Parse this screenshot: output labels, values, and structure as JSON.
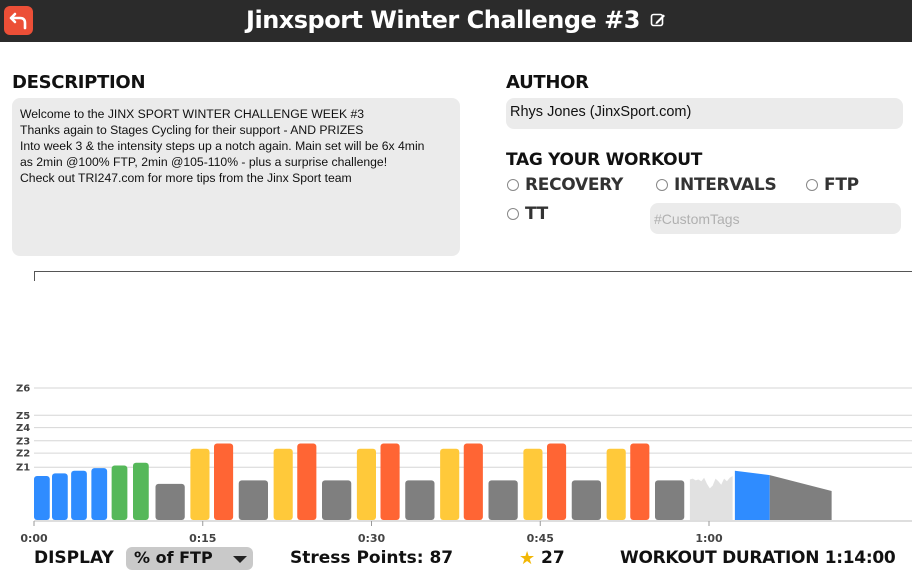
{
  "header": {
    "title": "Jinxsport Winter Challenge #3",
    "back_icon": "back-arrow-icon",
    "edit_icon": "edit-icon"
  },
  "description": {
    "label": "DESCRIPTION",
    "lines": [
      "Welcome to the JINX SPORT WINTER CHALLENGE WEEK #3",
      "Thanks again to Stages Cycling for their support - AND PRIZES",
      "",
      "Into week 3 & the intensity steps up a notch again. Main set will be 6x 4min",
      "as 2min @100% FTP, 2min @105-110% - plus a surprise challenge!",
      "",
      "Check out TRI247.com for more tips from the Jinx Sport team"
    ]
  },
  "author": {
    "label": "AUTHOR",
    "value": "Rhys Jones (JinxSport.com)"
  },
  "tags": {
    "label": "TAG YOUR WORKOUT",
    "options": [
      "RECOVERY",
      "INTERVALS",
      "FTP",
      "TT"
    ],
    "custom_placeholder": "#CustomTags"
  },
  "colors": {
    "z1": "#7f7f7f",
    "z2": "#2f8cff",
    "z3": "#55b859",
    "z4": "#ffc93a",
    "z5": "#ff6534",
    "free": "#e1e1e1",
    "accent": "#ec4f37"
  },
  "chart_data": {
    "type": "bar",
    "zone_labels": [
      "Z1",
      "Z2",
      "Z3",
      "Z4",
      "Z5",
      "Z6"
    ],
    "x_ticks": [
      "0:00",
      "0:15",
      "0:30",
      "0:45",
      "1:00"
    ],
    "x_tick_minutes": [
      0,
      15,
      30,
      45,
      60
    ],
    "zone_boundaries_pct_ftp": [
      60,
      76,
      90,
      105,
      119,
      150
    ],
    "ylim": [
      0,
      160
    ],
    "total_minutes": 74,
    "segments": [
      {
        "start": 0,
        "duration": 1.4,
        "power_start": 50,
        "power_end": 50,
        "zone": "z2"
      },
      {
        "start": 1.6,
        "duration": 1.4,
        "power_start": 53,
        "power_end": 53,
        "zone": "z2"
      },
      {
        "start": 3.3,
        "duration": 1.4,
        "power_start": 56,
        "power_end": 56,
        "zone": "z2"
      },
      {
        "start": 5.1,
        "duration": 1.4,
        "power_start": 59,
        "power_end": 59,
        "zone": "z2"
      },
      {
        "start": 6.9,
        "duration": 1.4,
        "power_start": 62,
        "power_end": 62,
        "zone": "z3"
      },
      {
        "start": 8.8,
        "duration": 1.4,
        "power_start": 65,
        "power_end": 65,
        "zone": "z3"
      },
      {
        "start": 10.8,
        "duration": 2.6,
        "power_start": 41,
        "power_end": 41,
        "zone": "z1"
      },
      {
        "start": 13.9,
        "duration": 1.7,
        "power_start": 81,
        "power_end": 81,
        "zone": "z4"
      },
      {
        "start": 16,
        "duration": 1.7,
        "power_start": 87,
        "power_end": 87,
        "zone": "z5"
      },
      {
        "start": 18.2,
        "duration": 2.6,
        "power_start": 45,
        "power_end": 45,
        "zone": "z1"
      },
      {
        "start": 21.3,
        "duration": 1.7,
        "power_start": 81,
        "power_end": 81,
        "zone": "z4"
      },
      {
        "start": 23.4,
        "duration": 1.7,
        "power_start": 87,
        "power_end": 87,
        "zone": "z5"
      },
      {
        "start": 25.6,
        "duration": 2.6,
        "power_start": 45,
        "power_end": 45,
        "zone": "z1"
      },
      {
        "start": 28.7,
        "duration": 1.7,
        "power_start": 81,
        "power_end": 81,
        "zone": "z4"
      },
      {
        "start": 30.8,
        "duration": 1.7,
        "power_start": 87,
        "power_end": 87,
        "zone": "z5"
      },
      {
        "start": 33,
        "duration": 2.6,
        "power_start": 45,
        "power_end": 45,
        "zone": "z1"
      },
      {
        "start": 36.1,
        "duration": 1.7,
        "power_start": 81,
        "power_end": 81,
        "zone": "z4"
      },
      {
        "start": 38.2,
        "duration": 1.7,
        "power_start": 87,
        "power_end": 87,
        "zone": "z5"
      },
      {
        "start": 40.4,
        "duration": 2.6,
        "power_start": 45,
        "power_end": 45,
        "zone": "z1"
      },
      {
        "start": 43.5,
        "duration": 1.7,
        "power_start": 81,
        "power_end": 81,
        "zone": "z4"
      },
      {
        "start": 45.6,
        "duration": 1.7,
        "power_start": 87,
        "power_end": 87,
        "zone": "z5"
      },
      {
        "start": 47.8,
        "duration": 2.6,
        "power_start": 45,
        "power_end": 45,
        "zone": "z1"
      },
      {
        "start": 50.9,
        "duration": 1.7,
        "power_start": 81,
        "power_end": 81,
        "zone": "z4"
      },
      {
        "start": 53,
        "duration": 1.7,
        "power_start": 87,
        "power_end": 87,
        "zone": "z5"
      },
      {
        "start": 55.2,
        "duration": 2.6,
        "power_start": 45,
        "power_end": 45,
        "zone": "z1"
      },
      {
        "start": 62.3,
        "duration": 3.1,
        "power_start": 56,
        "power_end": 51,
        "zone": "z2"
      },
      {
        "start": 65.4,
        "duration": 5.5,
        "power_start": 51,
        "power_end": 33,
        "zone": "z1"
      }
    ],
    "free_ride": {
      "start": 58.3,
      "duration": 3.8,
      "profile": [
        46,
        47,
        45,
        46,
        44,
        48,
        41,
        36,
        39,
        47,
        44,
        40,
        47,
        44,
        48,
        50
      ]
    }
  },
  "bottom": {
    "display_label": "DISPLAY",
    "display_select": "% of FTP",
    "stress_label": "Stress Points: 87",
    "star_icon": "star-icon",
    "stars": "27",
    "duration_label": "WORKOUT DURATION 1:14:00"
  }
}
